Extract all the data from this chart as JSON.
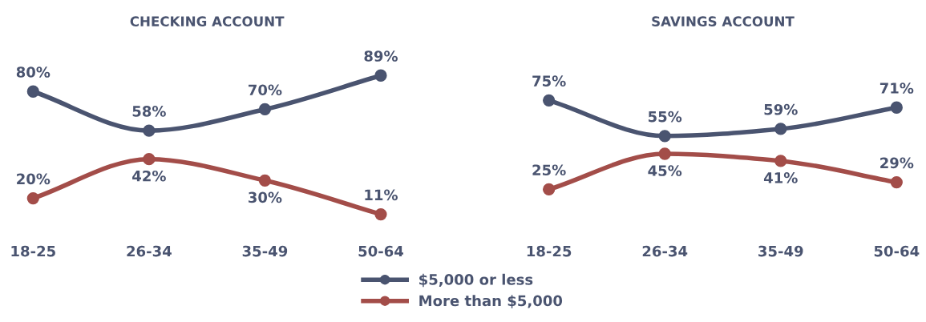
{
  "chart_data": [
    {
      "type": "line",
      "title": "CHECKING ACCOUNT",
      "categories": [
        "18-25",
        "26-34",
        "35-49",
        "50-64"
      ],
      "marker": "circle",
      "line_style": "solid",
      "grid": false,
      "legend": "bottom",
      "series": [
        {
          "name": "$5,000 or less",
          "color": "#4a5470",
          "values": [
            80,
            58,
            70,
            89
          ],
          "value_labels": [
            "80%",
            "58%",
            "70%",
            "89%"
          ]
        },
        {
          "name": "More than $5,000",
          "color": "#a34d49",
          "values": [
            20,
            42,
            30,
            11
          ],
          "value_labels": [
            "20%",
            "42%",
            "30%",
            "11%"
          ]
        }
      ]
    },
    {
      "type": "line",
      "title": "SAVINGS ACCOUNT",
      "categories": [
        "18-25",
        "26-34",
        "35-49",
        "50-64"
      ],
      "marker": "circle",
      "line_style": "solid",
      "grid": false,
      "legend": false,
      "series": [
        {
          "color": "#4a5470",
          "values": [
            75,
            55,
            59,
            71
          ],
          "value_labels": [
            "75%",
            "55%",
            "59%",
            "71%"
          ]
        },
        {
          "color": "#a34d49",
          "values": [
            25,
            45,
            41,
            29
          ],
          "value_labels": [
            "25%",
            "45%",
            "41%",
            "29%"
          ]
        }
      ]
    }
  ]
}
